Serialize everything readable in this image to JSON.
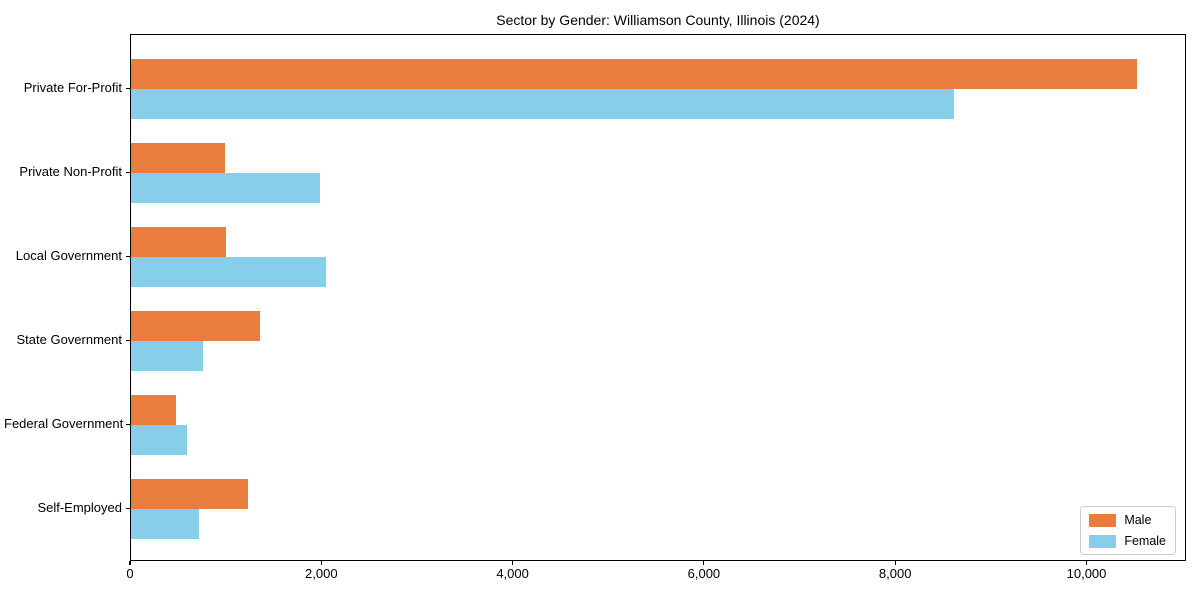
{
  "chart_data": {
    "type": "bar",
    "orientation": "horizontal",
    "title": "Sector by Gender: Williamson County, Illinois (2024)",
    "categories": [
      "Private For-Profit",
      "Private Non-Profit",
      "Local Government",
      "State Government",
      "Federal Government",
      "Self-Employed"
    ],
    "series": [
      {
        "name": "Male",
        "color": "#e87d3d",
        "values": [
          10520,
          980,
          990,
          1345,
          465,
          1220
        ]
      },
      {
        "name": "Female",
        "color": "#87ceeb",
        "values": [
          8600,
          1975,
          2035,
          750,
          580,
          710
        ]
      }
    ],
    "xlabel": "",
    "ylabel": "",
    "xlim": [
      0,
      11040
    ],
    "x_ticks": [
      0,
      2000,
      4000,
      6000,
      8000,
      10000
    ],
    "x_tick_labels": [
      "0",
      "2,000",
      "4,000",
      "6,000",
      "8,000",
      "10,000"
    ],
    "grid": false,
    "legend": {
      "position": "lower right",
      "entries": [
        "Male",
        "Female"
      ]
    }
  }
}
